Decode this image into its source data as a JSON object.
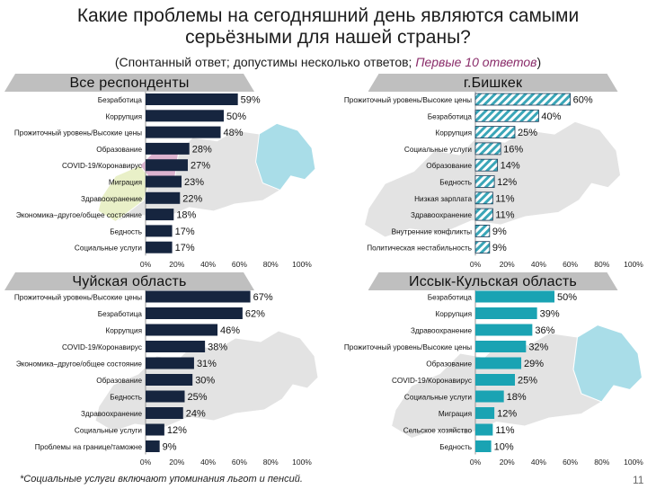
{
  "slide": {
    "title_line1": "Какие проблемы на сегодняшний день являются самыми",
    "title_line2": "серьёзными для нашей страны?",
    "subtitle_prefix": "(Спонтанный ответ; допустимы несколько ответов; ",
    "subtitle_emphasis": "Первые 10 ответов",
    "subtitle_suffix": ")",
    "footnote": "*Социальные услуги включают упоминания льгот и пенсий.",
    "page_number": "11"
  },
  "colors": {
    "bar_navy": "#16253f",
    "bar_teal": "#1aa3b3",
    "bar_hatch": "#3aa6b8",
    "banner_gray": "#bfbfbf",
    "map_gray": "#e3e3e3",
    "map_light_blue": "#a9dde8",
    "map_pink": "#dcb3cf",
    "map_yellow": "#e9f0c8",
    "accent_purple": "#8a2c6a"
  },
  "chart_data": [
    {
      "type": "bar",
      "orientation": "horizontal",
      "title": "Все респонденты",
      "categories": [
        "Безработица",
        "Коррупция",
        "Прожиточный уровень/Высокие цены",
        "Образование",
        "COVID-19/Коронавирус",
        "Миграция",
        "Здравоохранение",
        "Экономика–другое/общее состояние",
        "Бедность",
        "Социальные услуги"
      ],
      "values": [
        59,
        50,
        48,
        28,
        27,
        23,
        22,
        18,
        17,
        17
      ],
      "value_labels": [
        "59%",
        "50%",
        "48%",
        "28%",
        "27%",
        "23%",
        "22%",
        "18%",
        "17%",
        "17%"
      ],
      "xlim": [
        0,
        100
      ],
      "ticks": [
        "0%",
        "20%",
        "40%",
        "60%",
        "80%",
        "100%"
      ],
      "bar_style": "solid-navy"
    },
    {
      "type": "bar",
      "orientation": "horizontal",
      "title": "г.Бишкек",
      "categories": [
        "Прожиточный уровень/Высокие цены",
        "Безработица",
        "Коррупция",
        "Социальные услуги",
        "Образование",
        "Бедность",
        "Низкая зарплата",
        "Здравоохранение",
        "Внутренние конфликты",
        "Политическая нестабильность"
      ],
      "values": [
        60,
        40,
        25,
        16,
        14,
        12,
        11,
        11,
        9,
        9
      ],
      "value_labels": [
        "60%",
        "40%",
        "25%",
        "16%",
        "14%",
        "12%",
        "11%",
        "11%",
        "9%",
        "9%"
      ],
      "xlim": [
        0,
        100
      ],
      "ticks": [
        "0%",
        "20%",
        "40%",
        "60%",
        "80%",
        "100%"
      ],
      "bar_style": "hatched-teal"
    },
    {
      "type": "bar",
      "orientation": "horizontal",
      "title": "Чуйская область",
      "categories": [
        "Прожиточный уровень/Высокие цены",
        "Безработица",
        "Коррупция",
        "COVID-19/Коронавирус",
        "Экономика–другое/общее состояние",
        "Образование",
        "Бедность",
        "Здравоохранение",
        "Социальные услуги",
        "Проблемы на границе/таможне"
      ],
      "values": [
        67,
        62,
        46,
        38,
        31,
        30,
        25,
        24,
        12,
        9
      ],
      "value_labels": [
        "67%",
        "62%",
        "46%",
        "38%",
        "31%",
        "30%",
        "25%",
        "24%",
        "12%",
        "9%"
      ],
      "xlim": [
        0,
        100
      ],
      "ticks": [
        "0%",
        "20%",
        "40%",
        "60%",
        "80%",
        "100%"
      ],
      "bar_style": "solid-navy"
    },
    {
      "type": "bar",
      "orientation": "horizontal",
      "title": "Иссык-Кульская область",
      "categories": [
        "Безработица",
        "Коррупция",
        "Здравоохранение",
        "Прожиточный уровень/Высокие цены",
        "Образование",
        "COVID-19/Коронавирус",
        "Социальные услуги",
        "Миграция",
        "Сельское хозяйство",
        "Бедность"
      ],
      "values": [
        50,
        39,
        36,
        32,
        29,
        25,
        18,
        12,
        11,
        10
      ],
      "value_labels": [
        "50%",
        "39%",
        "36%",
        "32%",
        "29%",
        "25%",
        "18%",
        "12%",
        "11%",
        "10%"
      ],
      "xlim": [
        0,
        100
      ],
      "ticks": [
        "0%",
        "20%",
        "40%",
        "60%",
        "80%",
        "100%"
      ],
      "bar_style": "solid-teal"
    }
  ]
}
